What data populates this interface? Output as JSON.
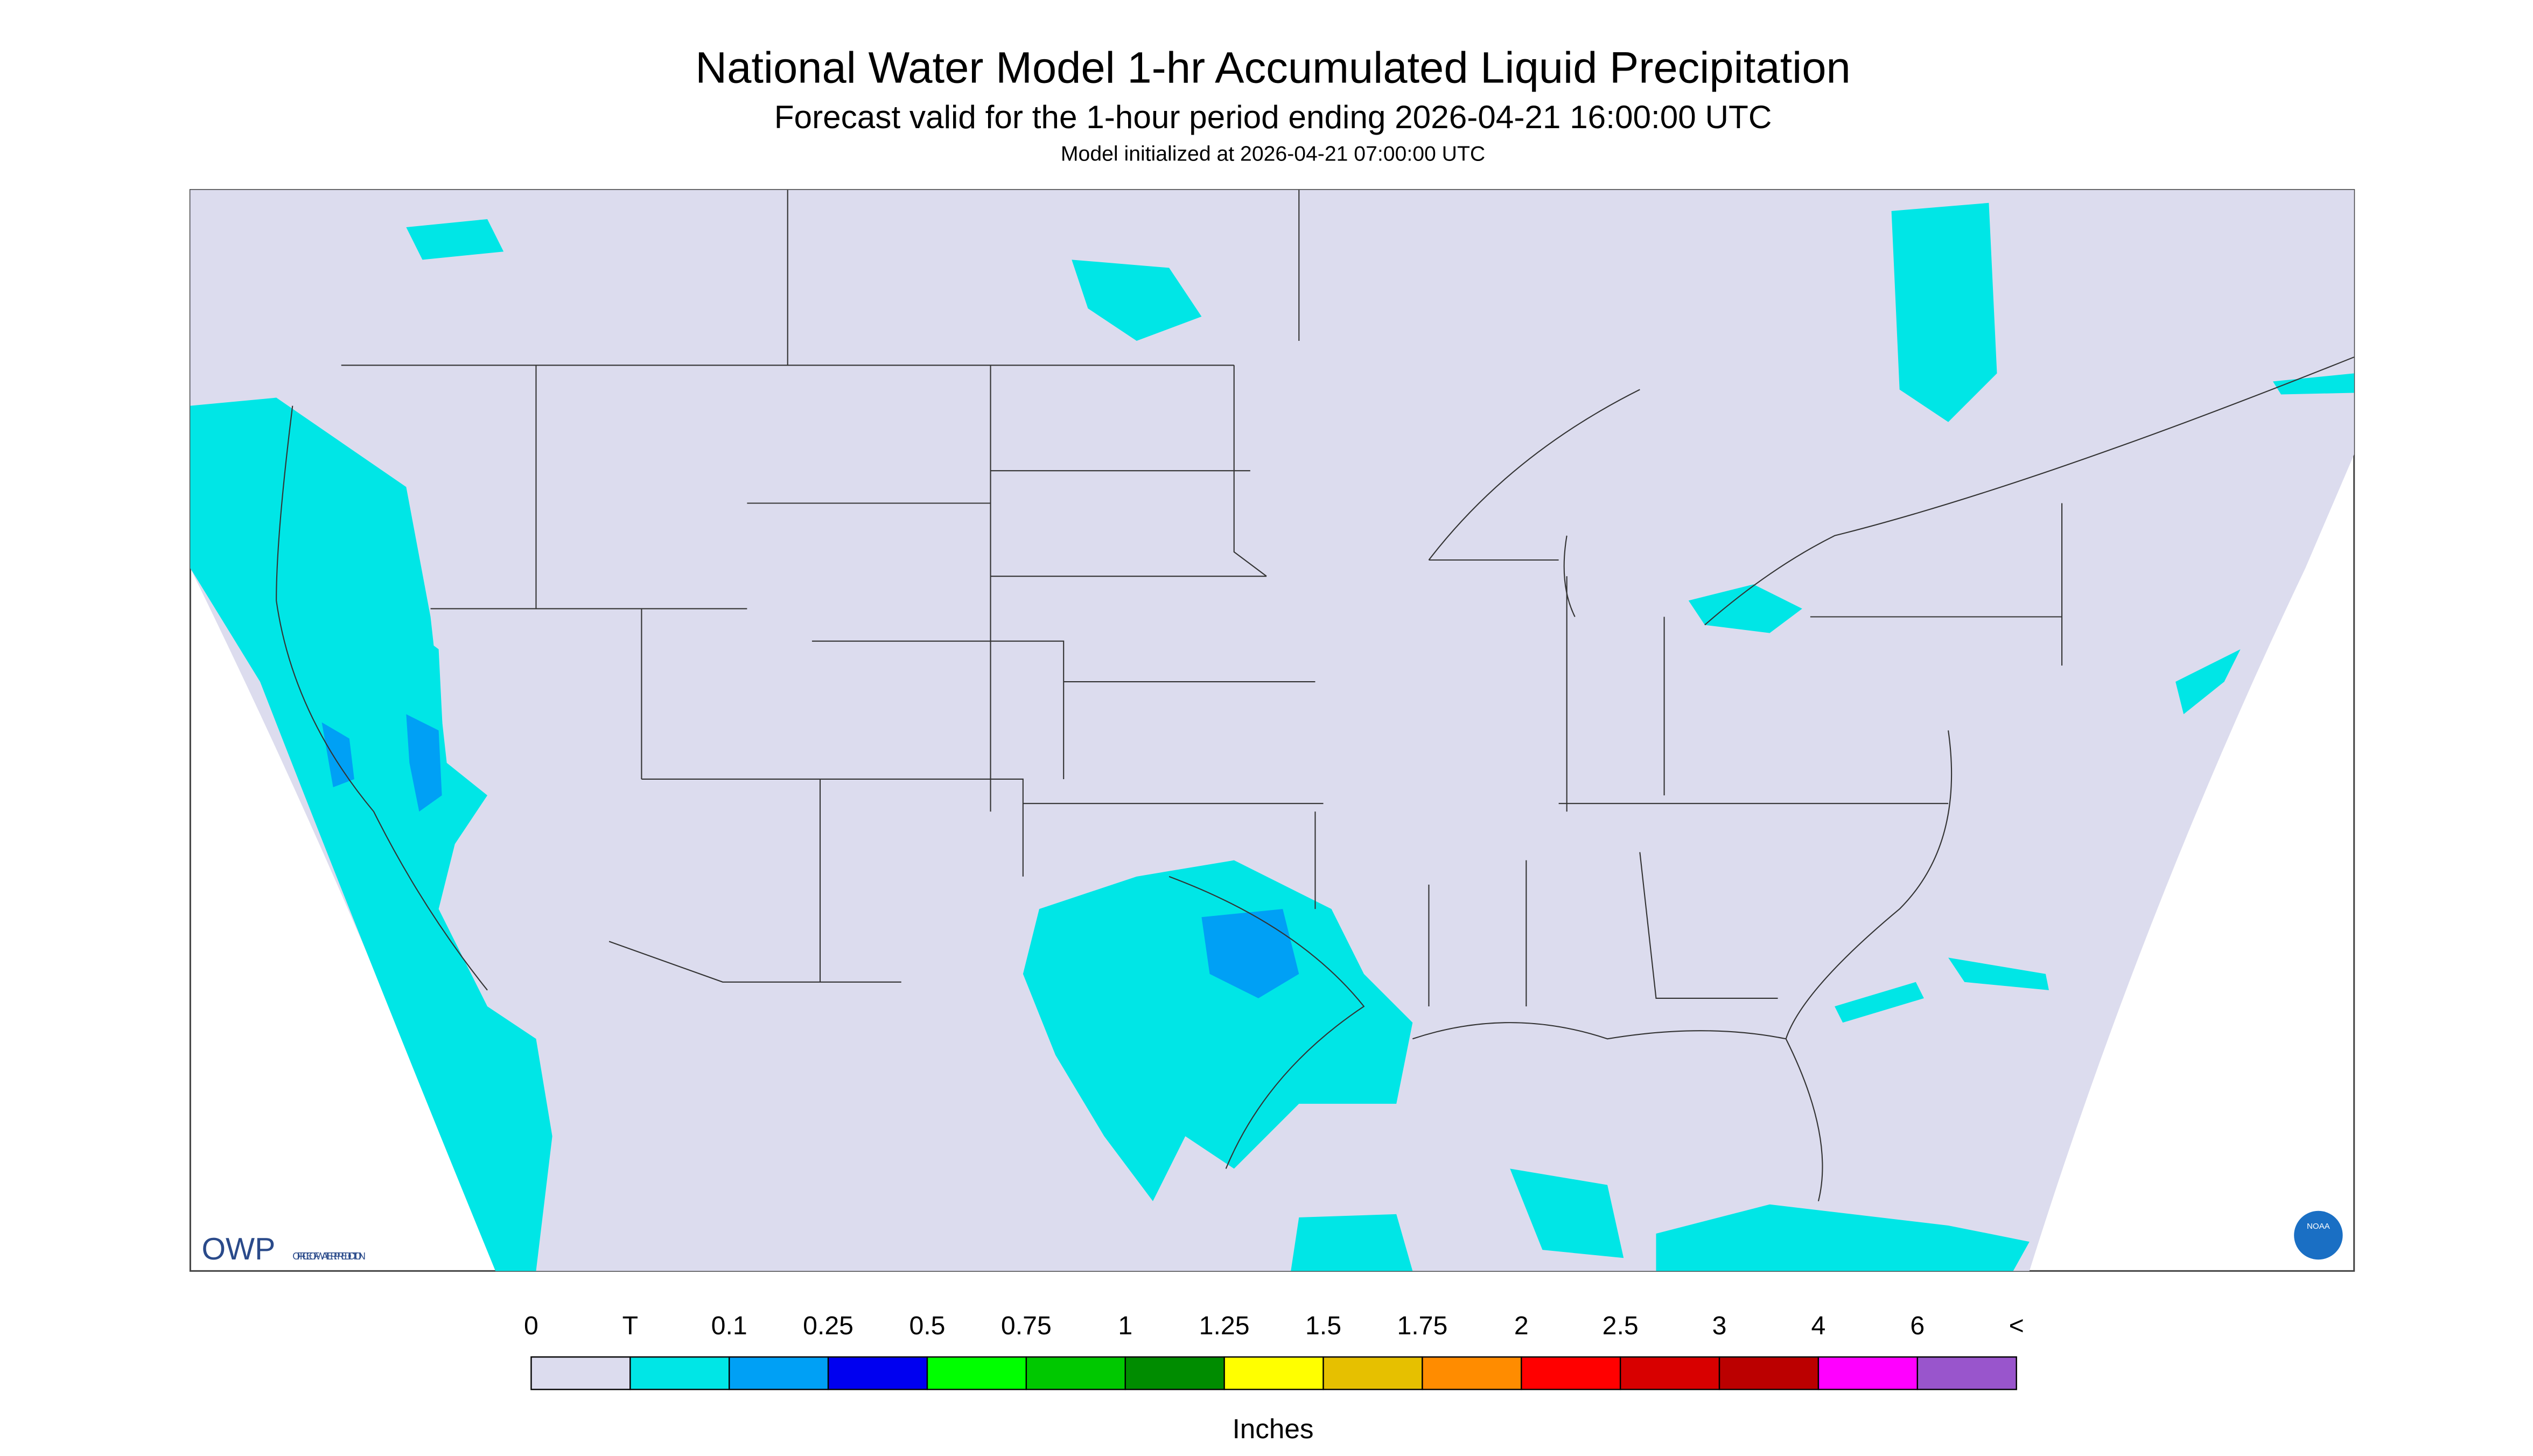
{
  "header": {
    "title": "National Water Model 1-hr Accumulated Liquid Precipitation",
    "subtitle": "Forecast valid for the 1-hour period ending 2026-04-21 16:00:00 UTC",
    "init": "Model initialized at 2026-04-21 07:00:00 UTC"
  },
  "legend": {
    "labels": [
      "0",
      "T",
      "0.1",
      "0.25",
      "0.5",
      "0.75",
      "1",
      "1.25",
      "1.5",
      "1.75",
      "2",
      "2.5",
      "3",
      "4",
      "6",
      "<"
    ],
    "colors": [
      "#dcdcee",
      "#00e6e6",
      "#00a0f5",
      "#0000f0",
      "#00ff00",
      "#00c800",
      "#008c00",
      "#ffff00",
      "#e6c000",
      "#ff8c00",
      "#ff0000",
      "#d80000",
      "#bb0000",
      "#ff00ff",
      "#9955cc"
    ],
    "unit": "Inches"
  },
  "logos": {
    "owp": "OWP",
    "owp_name": "OFFICE OF WATER PREDICTION",
    "noaa": "NOAA"
  }
}
